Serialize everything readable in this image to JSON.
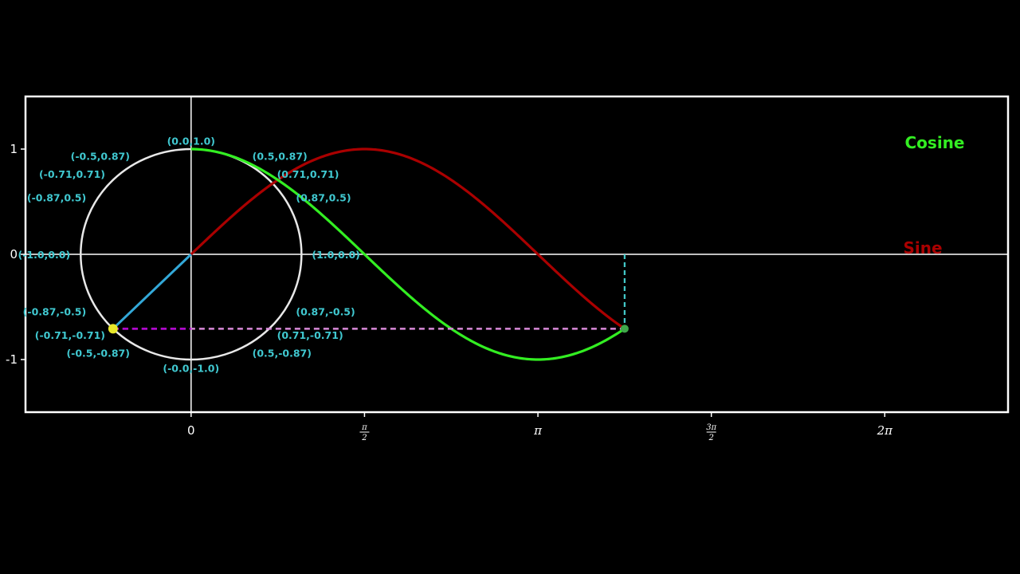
{
  "chart_data": {
    "type": "line",
    "title": "",
    "xlabel": "",
    "ylabel": "",
    "xlim": [
      -1.5,
      7.4
    ],
    "ylim": [
      -1.5,
      1.5
    ],
    "grid": false,
    "x_ticks": [
      {
        "value": 0,
        "label": "0",
        "kind": "plain"
      },
      {
        "value": 1.5708,
        "num": "π",
        "den": "2",
        "kind": "frac"
      },
      {
        "value": 3.1416,
        "label": "π",
        "kind": "pi"
      },
      {
        "value": 4.7124,
        "num": "3π",
        "den": "2",
        "kind": "frac"
      },
      {
        "value": 6.2832,
        "label": "2π",
        "kind": "pi"
      }
    ],
    "y_ticks": [
      {
        "value": 1,
        "label": "1"
      },
      {
        "value": 0,
        "label": "0"
      },
      {
        "value": -1,
        "label": "-1"
      }
    ],
    "series": [
      {
        "name": "Cosine",
        "function": "cos",
        "x_range": [
          0,
          3.927
        ]
      },
      {
        "name": "Sine",
        "function": "sin",
        "x_range": [
          0,
          3.927
        ]
      }
    ],
    "unit_circle": {
      "center": [
        0,
        0
      ],
      "radius": 1
    },
    "current_angle": 3.927,
    "current_point": [
      -0.71,
      -0.71
    ],
    "circle_points": [
      {
        "angle": 0,
        "label": "(1.0,0.0)"
      },
      {
        "angle": 0.5236,
        "label": "(0.87,0.5)"
      },
      {
        "angle": 0.7854,
        "label": "(0.71,0.71)"
      },
      {
        "angle": 1.0472,
        "label": "(0.5,0.87)"
      },
      {
        "angle": 1.5708,
        "label": "(0.0,1.0)"
      },
      {
        "angle": 2.0944,
        "label": "(-0.5,0.87)"
      },
      {
        "angle": 2.3562,
        "label": "(-0.71,0.71)"
      },
      {
        "angle": 2.618,
        "label": "(-0.87,0.5)"
      },
      {
        "angle": 3.1416,
        "label": "(-1.0,0.0)"
      },
      {
        "angle": 3.6652,
        "label": "(-0.87,-0.5)"
      },
      {
        "angle": 3.927,
        "label": "(-0.71,-0.71)"
      },
      {
        "angle": 4.1888,
        "label": "(-0.5,-0.87)"
      },
      {
        "angle": 4.7124,
        "label": "(-0.0,-1.0)"
      },
      {
        "angle": 5.236,
        "label": "(0.5,-0.87)"
      },
      {
        "angle": 5.4978,
        "label": "(0.71,-0.71)"
      },
      {
        "angle": 5.7596,
        "label": "(0.87,-0.5)"
      }
    ],
    "legend": [
      {
        "name": "Cosine",
        "color": "#33ee22"
      },
      {
        "name": "Sine",
        "color": "#aa0000"
      }
    ]
  },
  "colors": {
    "background": "#000000",
    "frame": "#ffffff",
    "axes": "#ffffff",
    "circle": "#e8e8e8",
    "cosine": "#33ee22",
    "sine": "#aa0000",
    "radius": "#33a8d8",
    "projection_horizontal": "#d98ad9",
    "projection_horizontal_inner": "#b000d0",
    "projection_vertical": "#44cccc",
    "point_labels": "#40c8d0",
    "moving_point": "#e8e82a",
    "end_point": "#3fa84a",
    "tick_text": "#ffffff"
  }
}
